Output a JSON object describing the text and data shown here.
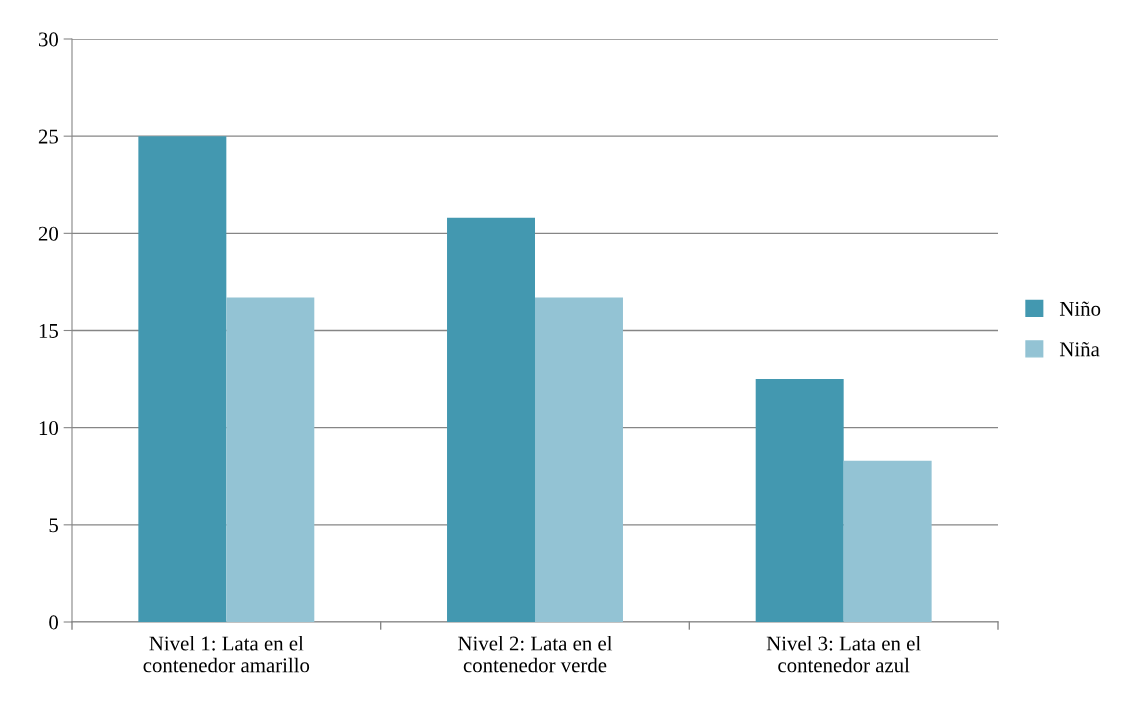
{
  "chart_data": {
    "type": "bar",
    "categories": [
      "Nivel 1: Lata en el\ncontenedor amarillo",
      "Nivel 2: Lata en el\ncontenedor verde",
      "Nivel 3: Lata en el\ncontenedor azul"
    ],
    "series": [
      {
        "name": "Niño",
        "color": "#4398b0",
        "values": [
          25,
          20.8,
          12.5
        ]
      },
      {
        "name": "Niña",
        "color": "#93c3d4",
        "values": [
          16.7,
          16.7,
          8.3
        ]
      }
    ],
    "ylim": [
      0,
      30
    ],
    "yticks": [
      0,
      5,
      10,
      15,
      20,
      25,
      30
    ],
    "grid": "y",
    "legend": "right"
  }
}
